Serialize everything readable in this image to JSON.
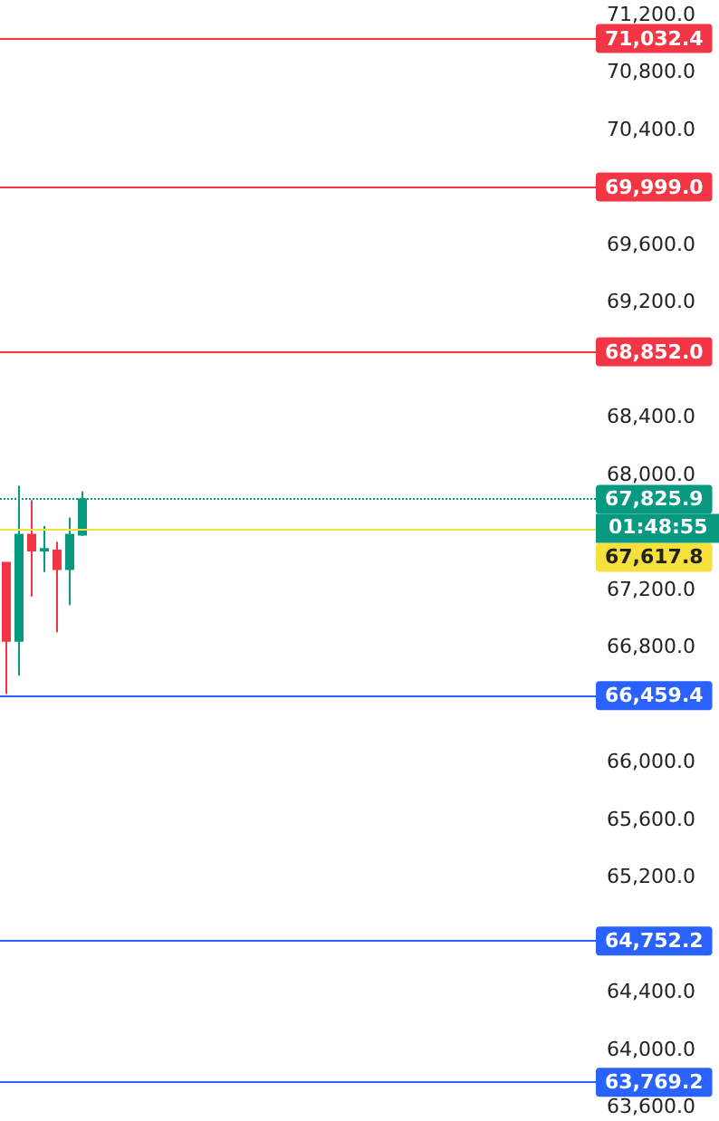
{
  "chart_data": {
    "type": "candlestick",
    "categories": [
      null,
      null,
      null,
      null,
      null,
      null,
      null,
      null,
      null,
      null,
      null,
      null,
      null,
      null,
      null,
      null,
      null,
      null,
      null,
      null,
      null,
      null,
      null,
      null,
      null,
      null,
      null,
      null,
      null,
      null,
      null,
      null,
      null,
      null,
      null,
      null,
      null,
      null,
      null,
      null,
      null,
      null,
      null,
      null,
      null,
      null,
      null
    ],
    "ohlc": [
      [
        67385,
        67390,
        66470,
        66840
      ],
      [
        66840,
        67920,
        66600,
        67580
      ],
      [
        67580,
        67820,
        67150,
        67470
      ],
      [
        67470,
        67640,
        67320,
        67480
      ],
      [
        67470,
        67530,
        66900,
        67340
      ],
      [
        67340,
        67700,
        67090,
        67580
      ],
      [
        67580,
        67880,
        67570,
        67825.9
      ],
      null,
      null,
      null,
      null,
      null,
      null,
      null,
      null,
      null,
      null,
      null,
      null,
      null,
      null,
      null,
      null,
      null,
      null,
      null,
      null,
      null,
      null,
      null,
      null,
      null,
      null,
      null,
      null,
      null,
      null,
      null,
      null,
      null,
      null,
      null,
      null,
      null,
      null,
      null,
      null
    ],
    "ylim": [
      63600,
      71200
    ],
    "yticks": [
      {
        "value": 63600,
        "label": "63,600.0"
      },
      {
        "value": 64000,
        "label": "64,000.0"
      },
      {
        "value": 64400,
        "label": "64,400.0"
      },
      {
        "value": 64800,
        "label": null
      },
      {
        "value": 65200,
        "label": "65,200.0"
      },
      {
        "value": 65600,
        "label": "65,600.0"
      },
      {
        "value": 66000,
        "label": "66,000.0"
      },
      {
        "value": 66400,
        "label": null
      },
      {
        "value": 66800,
        "label": "66,800.0"
      },
      {
        "value": 67200,
        "label": "67,200.0"
      },
      {
        "value": 67600,
        "label": null
      },
      {
        "value": 68000,
        "label": "68,000.0"
      },
      {
        "value": 68400,
        "label": "68,400.0"
      },
      {
        "value": 68800,
        "label": null
      },
      {
        "value": 69200,
        "label": "69,200.0"
      },
      {
        "value": 69600,
        "label": "69,600.0"
      },
      {
        "value": 70000,
        "label": null
      },
      {
        "value": 70400,
        "label": "70,400.0"
      },
      {
        "value": 70800,
        "label": "70,800.0"
      },
      {
        "value": 71200,
        "label": "71,200.0"
      }
    ],
    "ref_lines": [
      {
        "axis": "y",
        "value": 71032.4,
        "label": "71,032.4",
        "color": "#f23645",
        "line_style": "solid"
      },
      {
        "axis": "y",
        "value": 69999.0,
        "label": "69,999.0",
        "color": "#f23645",
        "line_style": "solid"
      },
      {
        "axis": "y",
        "value": 68852.0,
        "label": "68,852.0",
        "color": "#f23645",
        "line_style": "solid"
      },
      {
        "axis": "y",
        "value": 67825.9,
        "label": "67,825.9",
        "color": "#089981",
        "line_style": "dotted"
      },
      {
        "axis": "y",
        "value": 67617.8,
        "label": "67,617.8",
        "color": "#f5e03c",
        "line_style": "solid"
      },
      {
        "axis": "y",
        "value": 66459.4,
        "label": "66,459.4",
        "color": "#2962ff",
        "line_style": "solid"
      },
      {
        "axis": "y",
        "value": 64752.2,
        "label": "64,752.2",
        "color": "#2962ff",
        "line_style": "solid"
      },
      {
        "axis": "y",
        "value": 63769.2,
        "label": "63,769.2",
        "color": "#2962ff",
        "line_style": "solid"
      }
    ],
    "annotations": [
      "01:48:55"
    ],
    "grid": false
  }
}
